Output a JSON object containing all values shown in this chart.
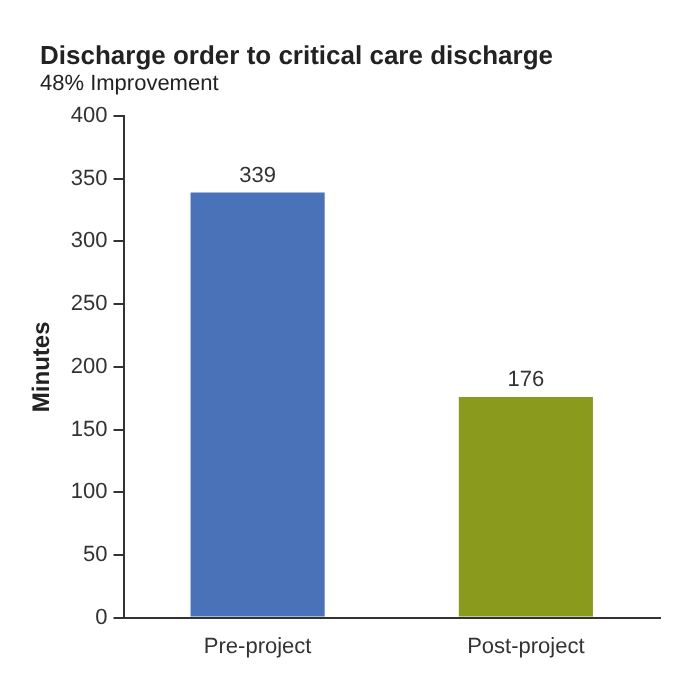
{
  "chart_data": {
    "type": "bar",
    "title": "Discharge order to critical care discharge",
    "subtitle": "48% Improvement",
    "ylabel": "Minutes",
    "categories": [
      "Pre-project",
      "Post-project"
    ],
    "values": [
      339,
      176
    ],
    "colors": [
      "#4a72b8",
      "#8a9a1c"
    ],
    "ylim": [
      0,
      400
    ],
    "yticks": [
      0,
      50,
      100,
      150,
      200,
      250,
      300,
      350,
      400
    ],
    "grid": false,
    "data_labels": true
  }
}
